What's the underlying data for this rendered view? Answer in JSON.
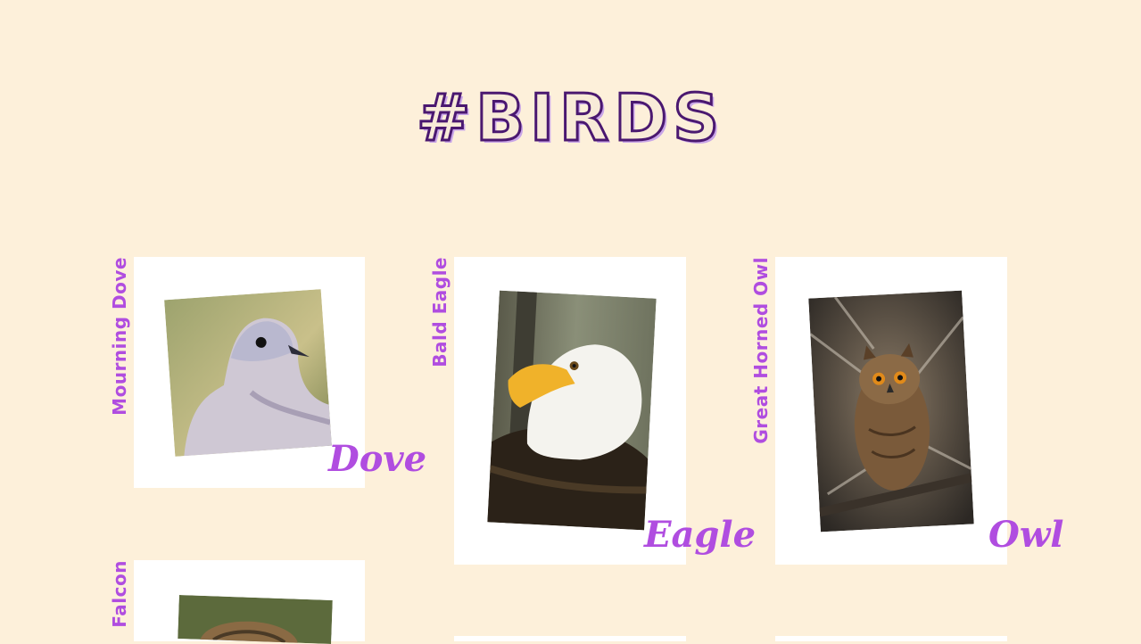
{
  "page": {
    "title": "#BIRDS"
  },
  "cards": [
    {
      "id": "dove",
      "caption": "Mourning Dove",
      "script": "Dove"
    },
    {
      "id": "eagle",
      "caption": "Bald Eagle",
      "script": "Eagle"
    },
    {
      "id": "owl",
      "caption": "Great Horned Owl",
      "script": "Owl"
    },
    {
      "id": "falcon",
      "caption": "Falcon",
      "script": ""
    }
  ],
  "colors": {
    "background": "#fdf0da",
    "accent": "#b04de0",
    "title_stroke": "#4a1870",
    "frame": "#ffffff"
  }
}
